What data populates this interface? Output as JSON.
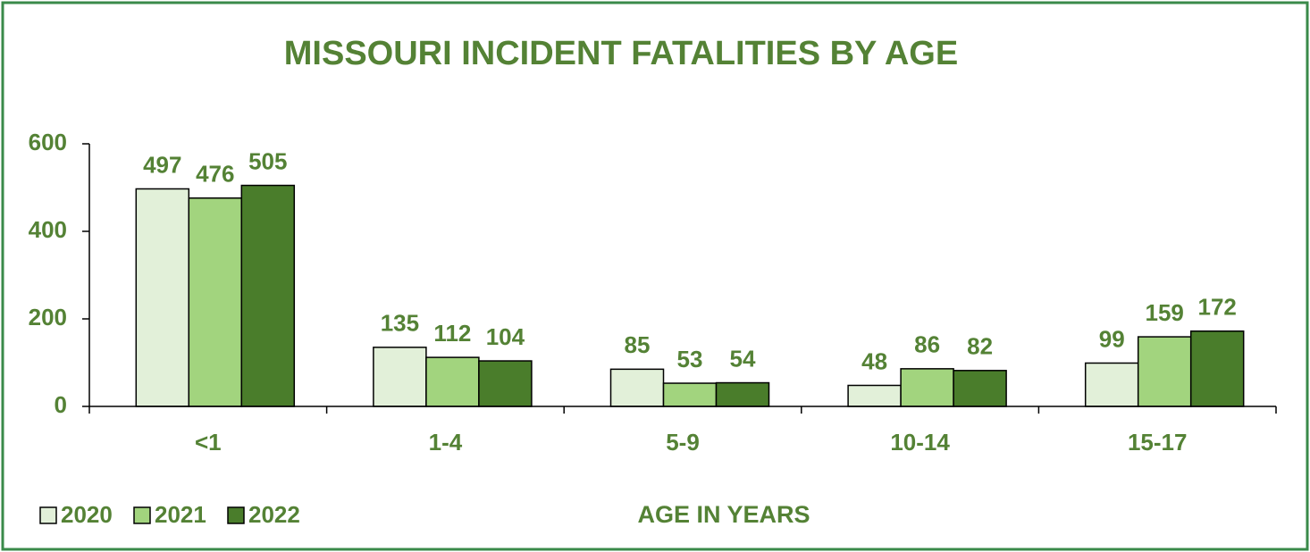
{
  "chart_data": {
    "type": "bar",
    "title": "MISSOURI INCIDENT FATALITIES BY AGE",
    "x_label": "AGE IN YEARS",
    "categories": [
      "<1",
      "1-4",
      "5-9",
      "10-14",
      "15-17"
    ],
    "series": [
      {
        "name": "2020",
        "color": "#e2f0d9",
        "values": [
          497,
          135,
          85,
          48,
          99
        ]
      },
      {
        "name": "2021",
        "color": "#a2d47e",
        "values": [
          476,
          112,
          53,
          86,
          159
        ]
      },
      {
        "name": "2022",
        "color": "#4a7d2b",
        "values": [
          505,
          104,
          54,
          82,
          172
        ]
      }
    ],
    "ylim": [
      0,
      600
    ],
    "yticks": [
      0,
      200,
      400,
      600
    ],
    "grid": false,
    "legend": "bottom-left"
  }
}
